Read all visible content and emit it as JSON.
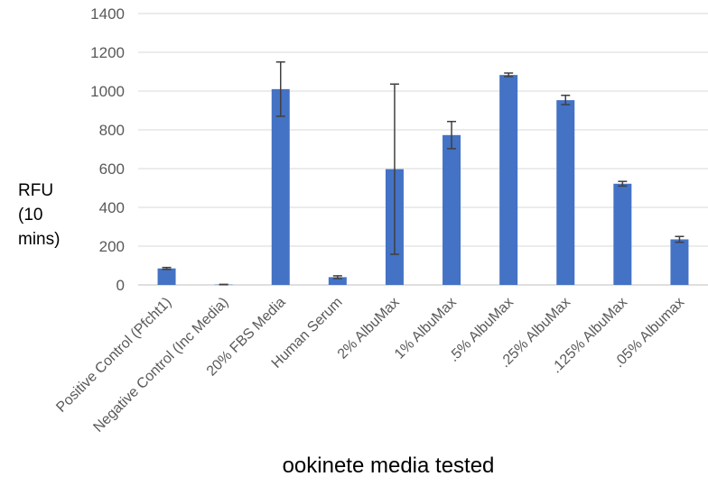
{
  "chart_data": {
    "type": "bar",
    "title": "",
    "xlabel": "ookinete media tested",
    "ylabel_lines": [
      "RFU",
      "(10",
      "mins)"
    ],
    "ylim": [
      0,
      1400
    ],
    "yticks": [
      0,
      200,
      400,
      600,
      800,
      1000,
      1200,
      1400
    ],
    "grid": true,
    "legend": "none",
    "categories": [
      "Positive Control (Pfcht1)",
      "Negative Control (Inc Media)",
      "20% FBS Media",
      "Human Serum",
      "2% AlbuMax",
      "1% AlbuMax",
      ".5% AlbuMax",
      ".25% AlbuMax",
      ".125% AlbuMax",
      ".05% Albumax"
    ],
    "values": [
      85,
      2,
      1010,
      40,
      597,
      773,
      1083,
      953,
      522,
      235
    ],
    "error_low": [
      80,
      1,
      870,
      33,
      158,
      703,
      1075,
      930,
      510,
      220
    ],
    "error_high": [
      90,
      3,
      1150,
      47,
      1036,
      843,
      1093,
      978,
      534,
      250
    ],
    "colors": {
      "bar": "#4472C4",
      "grid": "#d9d9d9",
      "axis": "#bfbfbf",
      "error": "#404040",
      "text": "#595959"
    }
  }
}
